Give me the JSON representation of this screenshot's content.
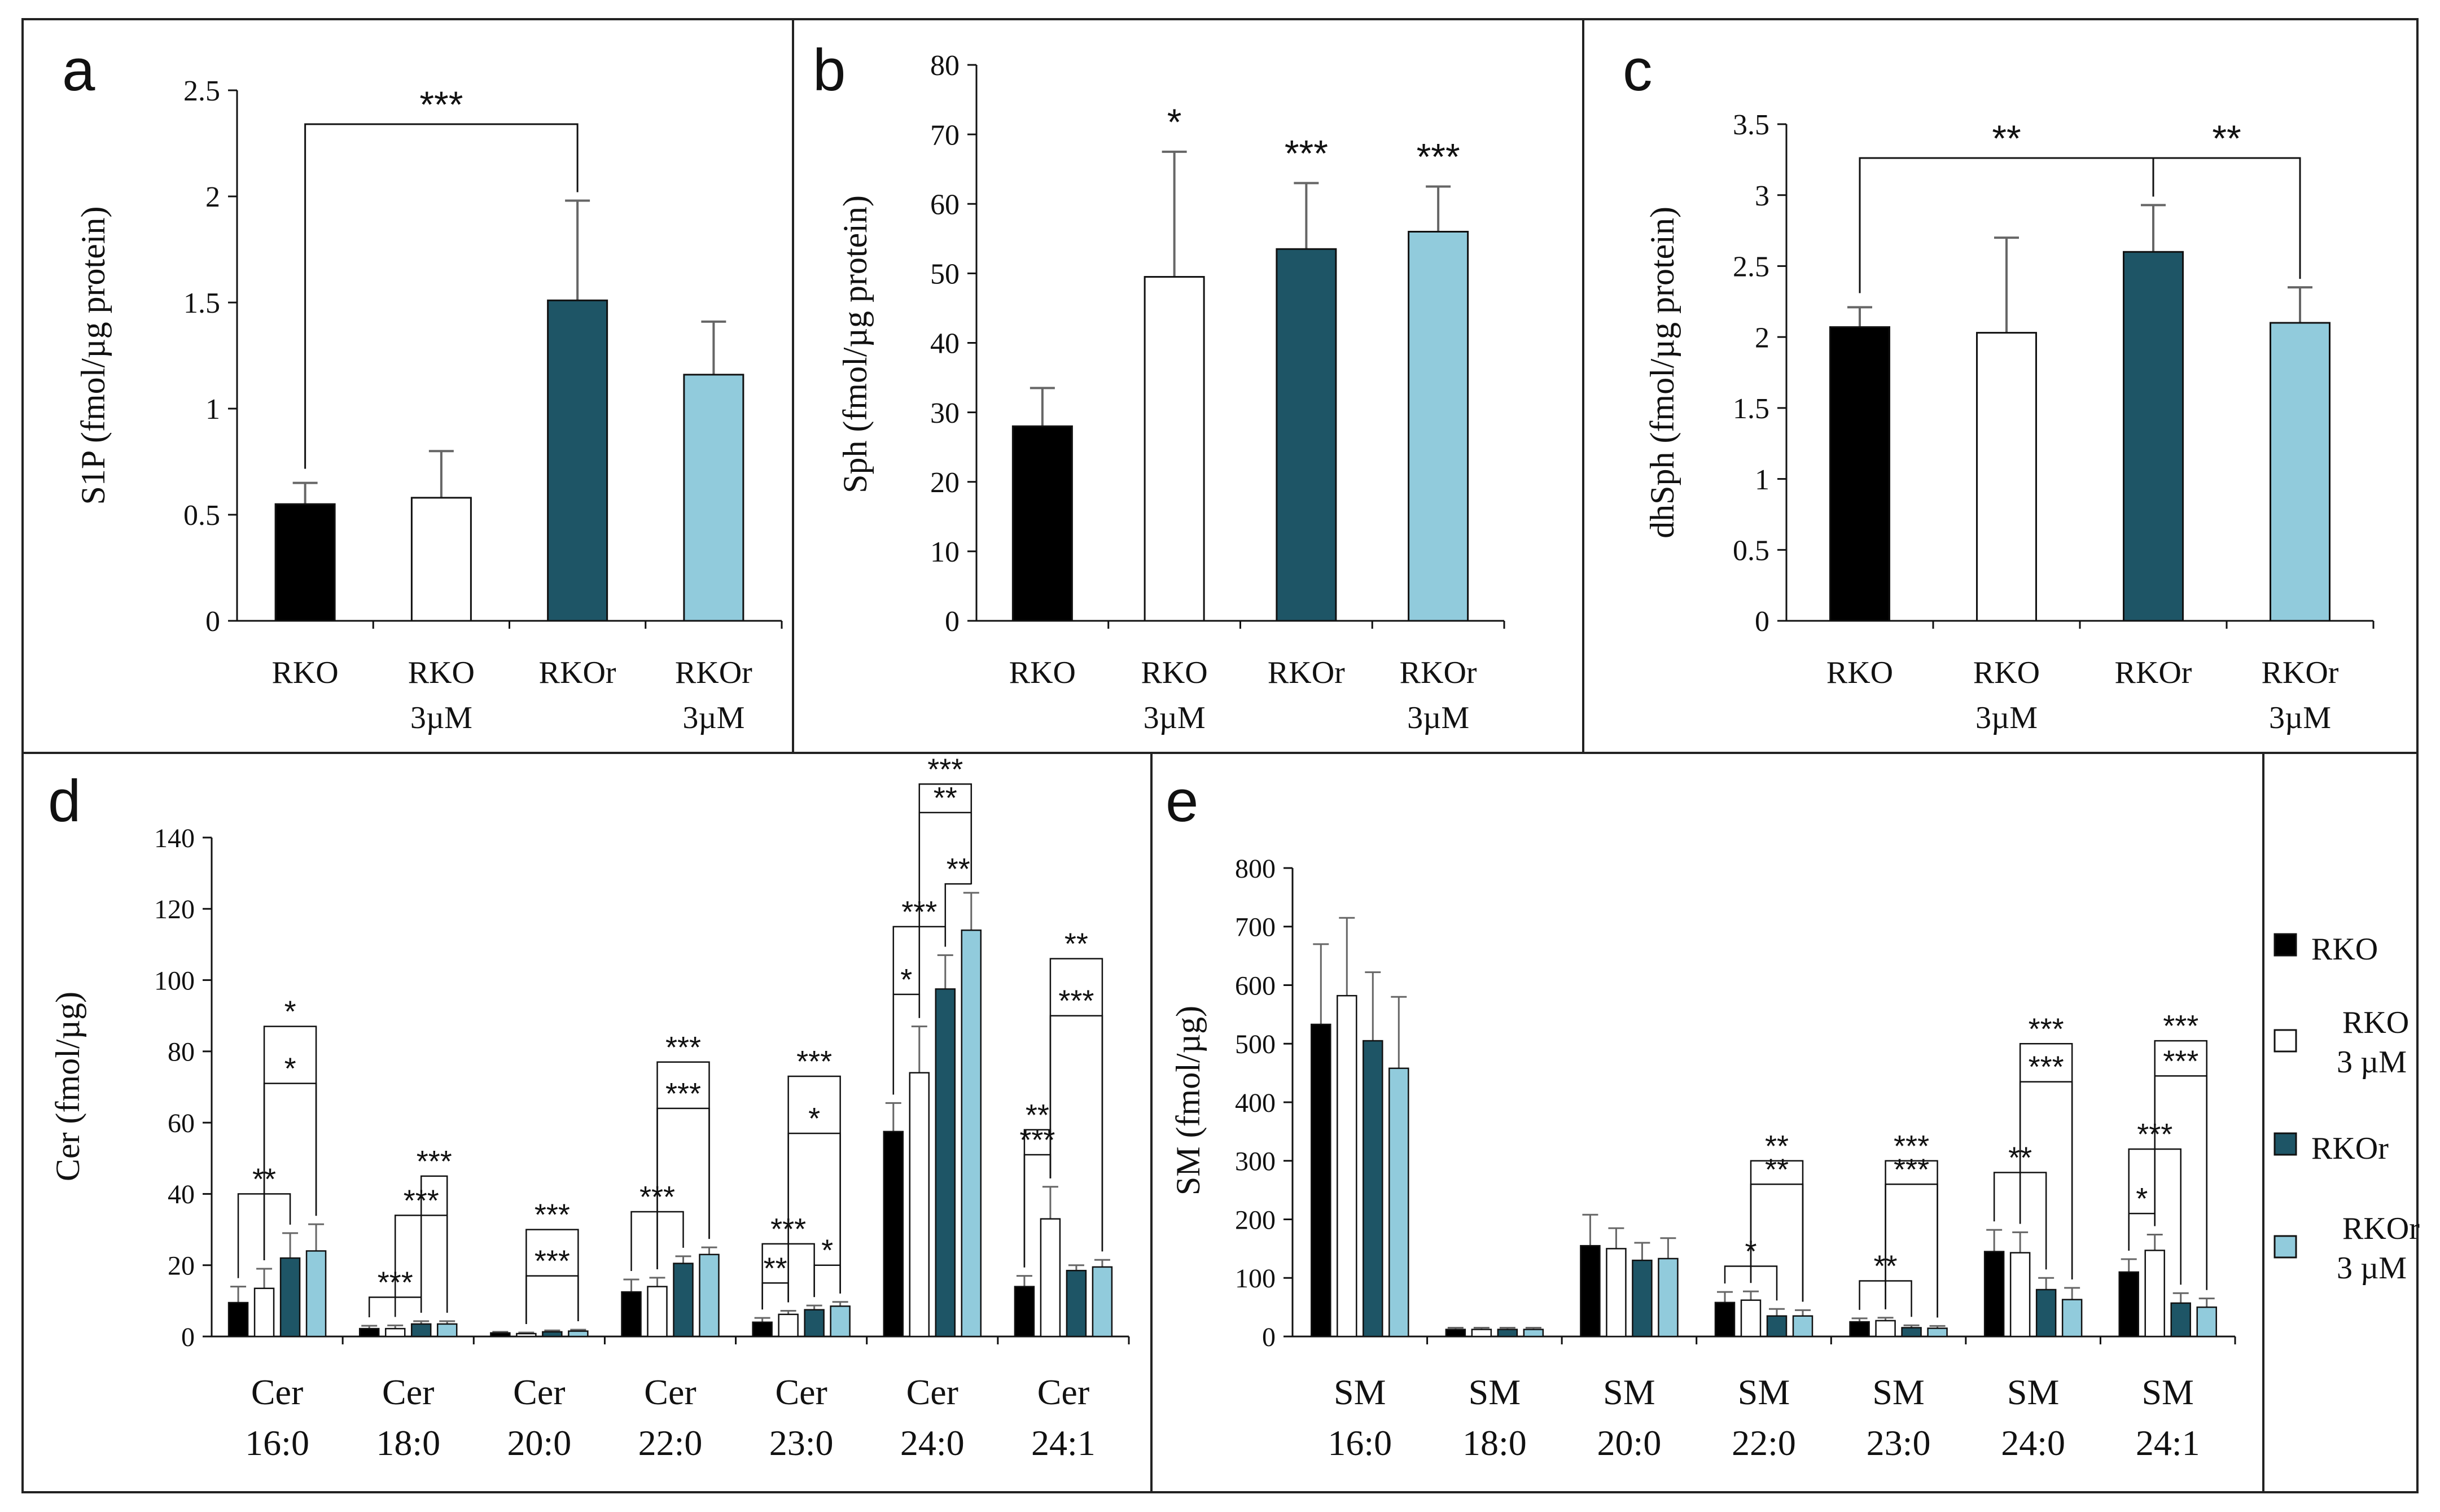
{
  "groups": [
    {
      "id": "RKO",
      "label": "RKO",
      "color": "#000000"
    },
    {
      "id": "RKO3",
      "label": "RKO 3µM",
      "color": "#ffffff"
    },
    {
      "id": "RKOr",
      "label": "RKOr",
      "color": "#1e5566"
    },
    {
      "id": "RKOr3",
      "label": "RKOr 3µM",
      "color": "#91cbdc"
    }
  ],
  "legend": {
    "items": [
      {
        "label": "RKO",
        "color": "#000000"
      },
      {
        "label": "RKO 3 µM",
        "color": "#ffffff"
      },
      {
        "label": "RKOr",
        "color": "#1e5566"
      },
      {
        "label": "RKOr 3 µM",
        "color": "#91cbdc"
      }
    ]
  },
  "chart_data": [
    {
      "panel": "a",
      "type": "bar",
      "ylabel": "S1P (fmol/µg protein)",
      "ylim": [
        0,
        2.5
      ],
      "yticks": [
        "0",
        "0.5",
        "1",
        "1.5",
        "2",
        "2.5"
      ],
      "categories": [
        "RKO|",
        "RKO|3µM",
        "RKOr|",
        "RKOr|3µM"
      ],
      "values": [
        0.55,
        0.58,
        1.51,
        1.16
      ],
      "errors": [
        0.1,
        0.22,
        0.47,
        0.25
      ],
      "significance": [
        {
          "from": 0,
          "to": 2,
          "label": "***"
        }
      ]
    },
    {
      "panel": "b",
      "type": "bar",
      "ylabel": "Sph (fmol/µg protein)",
      "ylim": [
        0,
        80
      ],
      "yticks": [
        "0",
        "10",
        "20",
        "30",
        "40",
        "50",
        "60",
        "70",
        "80"
      ],
      "categories": [
        "RKO|",
        "RKO|3µM",
        "RKOr|",
        "RKOr|3µM"
      ],
      "values": [
        28,
        49.5,
        53.5,
        56
      ],
      "errors": [
        5.5,
        18,
        9.5,
        6.5
      ],
      "stars": [
        "",
        "*",
        "***",
        "***"
      ]
    },
    {
      "panel": "c",
      "type": "bar",
      "ylabel": "dhSph (fmol/µg protein)",
      "ylim": [
        0,
        3.5
      ],
      "yticks": [
        "0",
        "0.5",
        "1",
        "1.5",
        "2",
        "2.5",
        "3",
        "3.5"
      ],
      "categories": [
        "RKO|",
        "RKO|3µM",
        "RKOr|",
        "RKOr|3µM"
      ],
      "values": [
        2.07,
        2.03,
        2.6,
        2.1
      ],
      "errors": [
        0.14,
        0.67,
        0.33,
        0.25
      ],
      "significance": [
        {
          "from": 0,
          "to": 2,
          "label": "**"
        },
        {
          "from": 2,
          "to": 3,
          "label": "**"
        }
      ]
    },
    {
      "panel": "d",
      "type": "bar",
      "ylabel": "Cer (fmol/µg)",
      "ylim": [
        0,
        140
      ],
      "yticks": [
        "0",
        "20",
        "40",
        "60",
        "80",
        "100",
        "120",
        "140"
      ],
      "categories": [
        "Cer|16:0",
        "Cer|18:0",
        "Cer|20:0",
        "Cer|22:0",
        "Cer|23:0",
        "Cer|24:0",
        "Cer|24:1"
      ],
      "series": [
        {
          "name": "RKO",
          "values": [
            9.5,
            2.2,
            1.0,
            12.5,
            4.0,
            57.5,
            14.0
          ],
          "errors": [
            4.5,
            0.8,
            0.3,
            3.5,
            1.2,
            8.0,
            3.0
          ]
        },
        {
          "name": "RKO 3 µM",
          "values": [
            13.5,
            2.2,
            0.8,
            14.0,
            6.2,
            74.0,
            33.0
          ],
          "errors": [
            5.5,
            0.9,
            0.3,
            2.5,
            1.0,
            13.0,
            9.0
          ]
        },
        {
          "name": "RKOr",
          "values": [
            22.0,
            3.5,
            1.3,
            20.5,
            7.5,
            97.5,
            18.5
          ],
          "errors": [
            7.0,
            0.8,
            0.4,
            2.0,
            1.2,
            9.5,
            1.5
          ]
        },
        {
          "name": "RKOr 3 µM",
          "values": [
            24.0,
            3.5,
            1.5,
            23.0,
            8.5,
            114.0,
            19.5
          ],
          "errors": [
            7.5,
            0.8,
            0.4,
            2.0,
            1.2,
            10.5,
            2.0
          ]
        }
      ],
      "significance": [
        {
          "cat": 0,
          "from": 0,
          "to": 2,
          "label": "**",
          "y": 40
        },
        {
          "cat": 0,
          "from": 1,
          "to": 3,
          "label": "*",
          "y": 71
        },
        {
          "cat": 0,
          "from": 1,
          "to": 3,
          "label": "*",
          "y": 87
        },
        {
          "cat": 1,
          "from": 0,
          "to": 2,
          "label": "***",
          "y": 11
        },
        {
          "cat": 1,
          "from": 1,
          "to": 3,
          "label": "***",
          "y": 34
        },
        {
          "cat": 1,
          "from": 2,
          "to": 3,
          "label": "***",
          "y": 45
        },
        {
          "cat": 2,
          "from": 1,
          "to": 3,
          "label": "***",
          "y": 17
        },
        {
          "cat": 2,
          "from": 1,
          "to": 3,
          "label": "***",
          "y": 30
        },
        {
          "cat": 3,
          "from": 0,
          "to": 2,
          "label": "***",
          "y": 35
        },
        {
          "cat": 3,
          "from": 1,
          "to": 3,
          "label": "***",
          "y": 64
        },
        {
          "cat": 3,
          "from": 1,
          "to": 3,
          "label": "***",
          "y": 77
        },
        {
          "cat": 4,
          "from": 0,
          "to": 1,
          "label": "**",
          "y": 15
        },
        {
          "cat": 4,
          "from": 0,
          "to": 2,
          "label": "***",
          "y": 26
        },
        {
          "cat": 4,
          "from": 2,
          "to": 3,
          "label": "*",
          "y": 20
        },
        {
          "cat": 4,
          "from": 1,
          "to": 3,
          "label": "*",
          "y": 57
        },
        {
          "cat": 4,
          "from": 1,
          "to": 3,
          "label": "***",
          "y": 73
        },
        {
          "cat": 5,
          "from": 0,
          "to": 1,
          "label": "*",
          "y": 96
        },
        {
          "cat": 5,
          "from": 0,
          "to": 2,
          "label": "***",
          "y": 115
        },
        {
          "cat": 5,
          "from": 2,
          "to": 3,
          "label": "**",
          "y": 127
        },
        {
          "cat": 5,
          "from": 1,
          "to": 3,
          "label": "**",
          "y": 147
        },
        {
          "cat": 5,
          "from": 1,
          "to": 3,
          "label": "***",
          "y": 155
        },
        {
          "cat": 6,
          "from": 0,
          "to": 1,
          "label": "***",
          "y": 51
        },
        {
          "cat": 6,
          "from": 0,
          "to": 1,
          "label": "**",
          "y": 58
        },
        {
          "cat": 6,
          "from": 1,
          "to": 3,
          "label": "***",
          "y": 90
        },
        {
          "cat": 6,
          "from": 1,
          "to": 3,
          "label": "**",
          "y": 106
        }
      ]
    },
    {
      "panel": "e",
      "type": "bar",
      "ylabel": "SM (fmol/µg)",
      "ylim": [
        0,
        800
      ],
      "yticks": [
        "0",
        "100",
        "200",
        "300",
        "400",
        "500",
        "600",
        "700",
        "800"
      ],
      "categories": [
        "SM|16:0",
        "SM|18:0",
        "SM|20:0",
        "SM|22:0",
        "SM|23:0",
        "SM|24:0",
        "SM|24:1"
      ],
      "series": [
        {
          "name": "RKO",
          "values": [
            533,
            12,
            155,
            58,
            25,
            145,
            110
          ],
          "errors": [
            137,
            3,
            53,
            18,
            6,
            37,
            22
          ]
        },
        {
          "name": "RKO 3 µM",
          "values": [
            582,
            12,
            150,
            62,
            27,
            143,
            147
          ],
          "errors": [
            133,
            3,
            35,
            15,
            5,
            35,
            27
          ]
        },
        {
          "name": "RKOr",
          "values": [
            505,
            12,
            130,
            35,
            15,
            80,
            57
          ],
          "errors": [
            117,
            3,
            30,
            12,
            4,
            20,
            17
          ]
        },
        {
          "name": "RKOr 3 µM",
          "values": [
            458,
            12,
            133,
            35,
            14,
            63,
            50
          ],
          "errors": [
            122,
            3,
            35,
            10,
            4,
            20,
            15
          ]
        }
      ],
      "significance": [
        {
          "cat": 3,
          "from": 0,
          "to": 2,
          "label": "*",
          "y": 120
        },
        {
          "cat": 3,
          "from": 1,
          "to": 3,
          "label": "**",
          "y": 260
        },
        {
          "cat": 3,
          "from": 1,
          "to": 3,
          "label": "**",
          "y": 300
        },
        {
          "cat": 4,
          "from": 0,
          "to": 2,
          "label": "**",
          "y": 95
        },
        {
          "cat": 4,
          "from": 1,
          "to": 3,
          "label": "***",
          "y": 260
        },
        {
          "cat": 4,
          "from": 1,
          "to": 3,
          "label": "***",
          "y": 300
        },
        {
          "cat": 5,
          "from": 0,
          "to": 2,
          "label": "**",
          "y": 280
        },
        {
          "cat": 5,
          "from": 1,
          "to": 3,
          "label": "***",
          "y": 435
        },
        {
          "cat": 5,
          "from": 1,
          "to": 3,
          "label": "***",
          "y": 500
        },
        {
          "cat": 6,
          "from": 0,
          "to": 1,
          "label": "*",
          "y": 210
        },
        {
          "cat": 6,
          "from": 0,
          "to": 2,
          "label": "***",
          "y": 320
        },
        {
          "cat": 6,
          "from": 1,
          "to": 3,
          "label": "***",
          "y": 445
        },
        {
          "cat": 6,
          "from": 1,
          "to": 3,
          "label": "***",
          "y": 505
        }
      ]
    }
  ]
}
